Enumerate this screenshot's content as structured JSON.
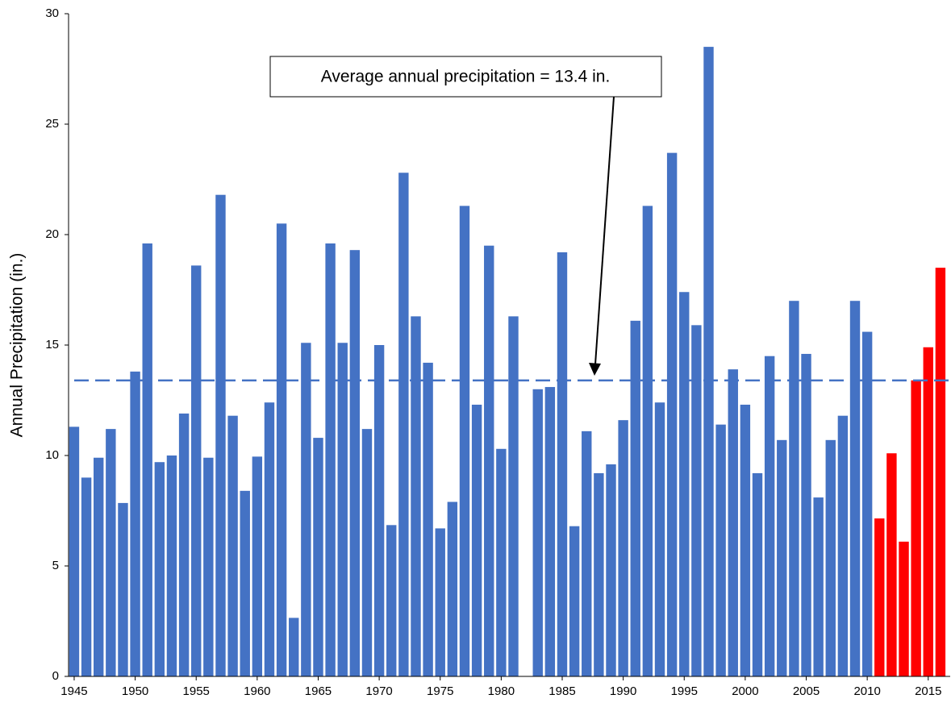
{
  "chart_data": {
    "type": "bar",
    "y_axis_label": "Annual Precipitation (in.)",
    "annotation": "Average annual precipitation = 13.4 in.",
    "average_line": 13.4,
    "x": [
      1945,
      1946,
      1947,
      1948,
      1949,
      1950,
      1951,
      1952,
      1953,
      1954,
      1955,
      1956,
      1957,
      1958,
      1959,
      1960,
      1961,
      1962,
      1963,
      1964,
      1965,
      1966,
      1967,
      1968,
      1969,
      1970,
      1971,
      1972,
      1973,
      1974,
      1975,
      1976,
      1977,
      1978,
      1979,
      1980,
      1981,
      1982,
      1983,
      1984,
      1985,
      1986,
      1987,
      1988,
      1989,
      1990,
      1991,
      1992,
      1993,
      1994,
      1995,
      1996,
      1997,
      1998,
      1999,
      2000,
      2001,
      2002,
      2003,
      2004,
      2005,
      2006,
      2007,
      2008,
      2009,
      2010,
      2011,
      2012,
      2013,
      2014,
      2015,
      2016
    ],
    "values": [
      11.3,
      9.0,
      9.9,
      11.2,
      7.85,
      13.8,
      19.6,
      9.7,
      10.0,
      11.9,
      18.6,
      9.9,
      21.8,
      11.8,
      8.4,
      9.95,
      12.4,
      20.5,
      2.65,
      15.1,
      10.8,
      19.6,
      15.1,
      19.3,
      11.2,
      15.0,
      6.85,
      22.8,
      16.3,
      14.2,
      6.7,
      7.9,
      21.3,
      12.3,
      19.5,
      10.3,
      16.3,
      null,
      13.0,
      13.1,
      19.2,
      6.8,
      11.1,
      9.2,
      9.6,
      11.6,
      16.1,
      21.3,
      12.4,
      23.7,
      17.4,
      15.9,
      28.5,
      11.4,
      13.9,
      12.3,
      9.2,
      14.5,
      10.7,
      17.0,
      14.6,
      8.1,
      10.7,
      11.8,
      17.0,
      15.6,
      7.15,
      10.1,
      6.1,
      13.4,
      14.9,
      18.5
    ],
    "colors": [
      "#4472c4",
      "#4472c4",
      "#4472c4",
      "#4472c4",
      "#4472c4",
      "#4472c4",
      "#4472c4",
      "#4472c4",
      "#4472c4",
      "#4472c4",
      "#4472c4",
      "#4472c4",
      "#4472c4",
      "#4472c4",
      "#4472c4",
      "#4472c4",
      "#4472c4",
      "#4472c4",
      "#4472c4",
      "#4472c4",
      "#4472c4",
      "#4472c4",
      "#4472c4",
      "#4472c4",
      "#4472c4",
      "#4472c4",
      "#4472c4",
      "#4472c4",
      "#4472c4",
      "#4472c4",
      "#4472c4",
      "#4472c4",
      "#4472c4",
      "#4472c4",
      "#4472c4",
      "#4472c4",
      "#4472c4",
      "#4472c4",
      "#4472c4",
      "#4472c4",
      "#4472c4",
      "#4472c4",
      "#4472c4",
      "#4472c4",
      "#4472c4",
      "#4472c4",
      "#4472c4",
      "#4472c4",
      "#4472c4",
      "#4472c4",
      "#4472c4",
      "#4472c4",
      "#4472c4",
      "#4472c4",
      "#4472c4",
      "#4472c4",
      "#4472c4",
      "#4472c4",
      "#4472c4",
      "#4472c4",
      "#4472c4",
      "#4472c4",
      "#4472c4",
      "#4472c4",
      "#4472c4",
      "#4472c4",
      "#ff0000",
      "#ff0000",
      "#ff0000",
      "#ff0000",
      "#ff0000",
      "#ff0000"
    ],
    "line_color": "#4472c4",
    "xlim": [
      1944.54,
      2016.8
    ],
    "xticks": [
      1945,
      1950,
      1955,
      1960,
      1965,
      1970,
      1975,
      1980,
      1985,
      1990,
      1995,
      2000,
      2005,
      2010,
      2015
    ],
    "ylim": [
      0,
      30
    ],
    "yticks": [
      0,
      5,
      10,
      15,
      20,
      25,
      30
    ],
    "grid": false
  }
}
